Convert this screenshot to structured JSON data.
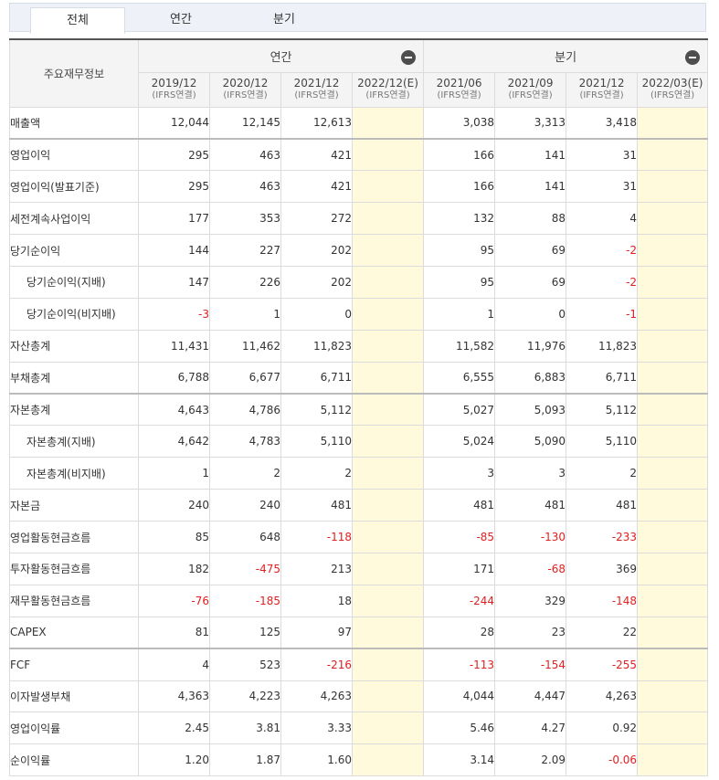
{
  "tabs": [
    {
      "label": "전체",
      "active": true
    },
    {
      "label": "연간",
      "active": false
    },
    {
      "label": "분기",
      "active": false
    }
  ],
  "table": {
    "row_header": "주요재무정보",
    "groups": [
      {
        "label": "연간",
        "columns": [
          {
            "period": "2019/12",
            "basis": "(IFRS연결)"
          },
          {
            "period": "2020/12",
            "basis": "(IFRS연결)"
          },
          {
            "period": "2021/12",
            "basis": "(IFRS연결)"
          },
          {
            "period": "2022/12(E)",
            "basis": "(IFRS연결)"
          }
        ]
      },
      {
        "label": "분기",
        "columns": [
          {
            "period": "2021/06",
            "basis": "(IFRS연결)"
          },
          {
            "period": "2021/09",
            "basis": "(IFRS연결)"
          },
          {
            "period": "2021/12",
            "basis": "(IFRS연결)"
          },
          {
            "period": "2022/03(E)",
            "basis": "(IFRS연결)"
          }
        ]
      }
    ],
    "rows": [
      {
        "label": "매출액",
        "indent": false,
        "sep": false,
        "annual": [
          "12,044",
          "12,145",
          "12,613",
          ""
        ],
        "quarter": [
          "3,038",
          "3,313",
          "3,418",
          ""
        ]
      },
      {
        "label": "영업이익",
        "indent": false,
        "sep": true,
        "annual": [
          "295",
          "463",
          "421",
          ""
        ],
        "quarter": [
          "166",
          "141",
          "31",
          ""
        ]
      },
      {
        "label": "영업이익(발표기준)",
        "indent": false,
        "sep": false,
        "annual": [
          "295",
          "463",
          "421",
          ""
        ],
        "quarter": [
          "166",
          "141",
          "31",
          ""
        ]
      },
      {
        "label": "세전계속사업이익",
        "indent": false,
        "sep": false,
        "annual": [
          "177",
          "353",
          "272",
          ""
        ],
        "quarter": [
          "132",
          "88",
          "4",
          ""
        ]
      },
      {
        "label": "당기순이익",
        "indent": false,
        "sep": false,
        "annual": [
          "144",
          "227",
          "202",
          ""
        ],
        "quarter": [
          "95",
          "69",
          "-2",
          ""
        ]
      },
      {
        "label": "당기순이익(지배)",
        "indent": true,
        "sep": false,
        "annual": [
          "147",
          "226",
          "202",
          ""
        ],
        "quarter": [
          "95",
          "69",
          "-2",
          ""
        ]
      },
      {
        "label": "당기순이익(비지배)",
        "indent": true,
        "sep": false,
        "annual": [
          "-3",
          "1",
          "0",
          ""
        ],
        "quarter": [
          "1",
          "0",
          "-1",
          ""
        ]
      },
      {
        "label": "자산총계",
        "indent": false,
        "sep": false,
        "annual": [
          "11,431",
          "11,462",
          "11,823",
          ""
        ],
        "quarter": [
          "11,582",
          "11,976",
          "11,823",
          ""
        ]
      },
      {
        "label": "부채총계",
        "indent": false,
        "sep": false,
        "annual": [
          "6,788",
          "6,677",
          "6,711",
          ""
        ],
        "quarter": [
          "6,555",
          "6,883",
          "6,711",
          ""
        ]
      },
      {
        "label": "자본총계",
        "indent": false,
        "sep": true,
        "annual": [
          "4,643",
          "4,786",
          "5,112",
          ""
        ],
        "quarter": [
          "5,027",
          "5,093",
          "5,112",
          ""
        ]
      },
      {
        "label": "자본총계(지배)",
        "indent": true,
        "sep": false,
        "annual": [
          "4,642",
          "4,783",
          "5,110",
          ""
        ],
        "quarter": [
          "5,024",
          "5,090",
          "5,110",
          ""
        ]
      },
      {
        "label": "자본총계(비지배)",
        "indent": true,
        "sep": false,
        "annual": [
          "1",
          "2",
          "2",
          ""
        ],
        "quarter": [
          "3",
          "3",
          "2",
          ""
        ]
      },
      {
        "label": "자본금",
        "indent": false,
        "sep": false,
        "annual": [
          "240",
          "240",
          "481",
          ""
        ],
        "quarter": [
          "481",
          "481",
          "481",
          ""
        ]
      },
      {
        "label": "영업활동현금흐름",
        "indent": false,
        "sep": false,
        "annual": [
          "85",
          "648",
          "-118",
          ""
        ],
        "quarter": [
          "-85",
          "-130",
          "-233",
          ""
        ]
      },
      {
        "label": "투자활동현금흐름",
        "indent": false,
        "sep": false,
        "annual": [
          "182",
          "-475",
          "213",
          ""
        ],
        "quarter": [
          "171",
          "-68",
          "369",
          ""
        ]
      },
      {
        "label": "재무활동현금흐름",
        "indent": false,
        "sep": false,
        "annual": [
          "-76",
          "-185",
          "18",
          ""
        ],
        "quarter": [
          "-244",
          "329",
          "-148",
          ""
        ]
      },
      {
        "label": "CAPEX",
        "indent": false,
        "sep": false,
        "annual": [
          "81",
          "125",
          "97",
          ""
        ],
        "quarter": [
          "28",
          "23",
          "22",
          ""
        ]
      },
      {
        "label": "FCF",
        "indent": false,
        "sep": true,
        "annual": [
          "4",
          "523",
          "-216",
          ""
        ],
        "quarter": [
          "-113",
          "-154",
          "-255",
          ""
        ]
      },
      {
        "label": "이자발생부채",
        "indent": false,
        "sep": false,
        "annual": [
          "4,363",
          "4,223",
          "4,263",
          ""
        ],
        "quarter": [
          "4,044",
          "4,447",
          "4,263",
          ""
        ]
      },
      {
        "label": "영업이익률",
        "indent": false,
        "sep": false,
        "annual": [
          "2.45",
          "3.81",
          "3.33",
          ""
        ],
        "quarter": [
          "5.46",
          "4.27",
          "0.92",
          ""
        ]
      },
      {
        "label": "순이익률",
        "indent": false,
        "sep": false,
        "annual": [
          "1.20",
          "1.87",
          "1.60",
          ""
        ],
        "quarter": [
          "3.14",
          "2.09",
          "-0.06",
          ""
        ]
      }
    ]
  },
  "colors": {
    "negative": "#e02020",
    "estimate_bg": "#fffadc",
    "header_bg": "#f4f4f4"
  }
}
